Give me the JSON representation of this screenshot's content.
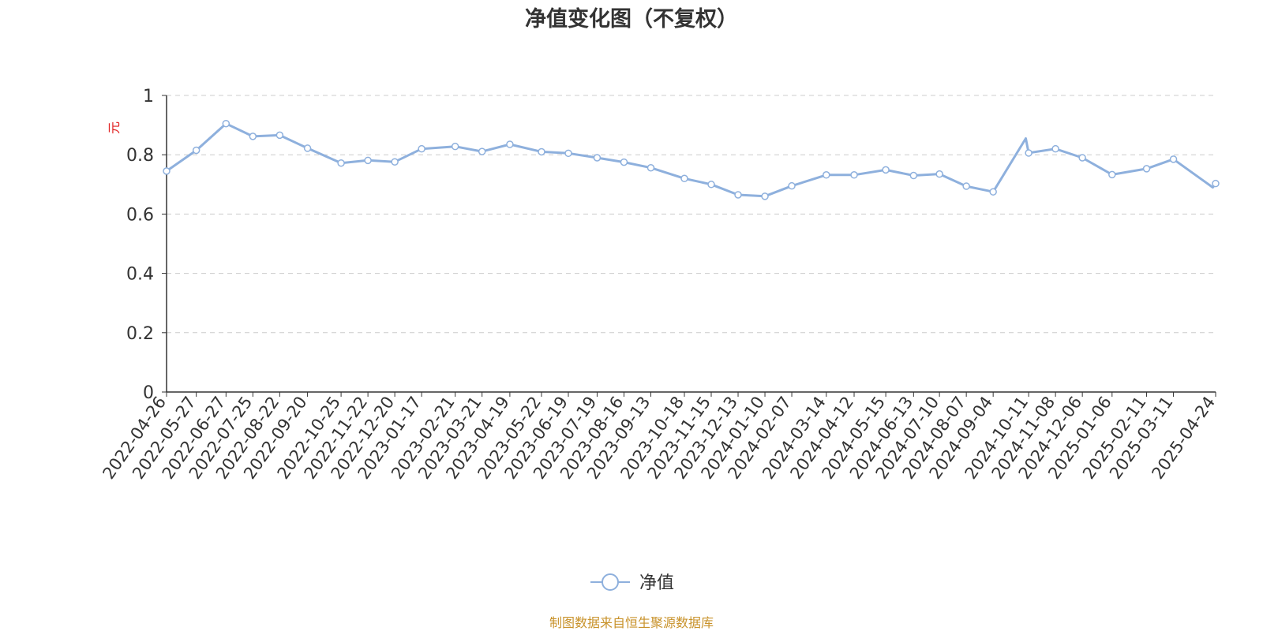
{
  "chart_data": {
    "type": "line",
    "title": "净值变化图（不复权）",
    "ylabel": "元",
    "ylim": [
      0,
      1
    ],
    "y_ticks": [
      "0",
      "0.2",
      "0.4",
      "0.6",
      "0.8",
      "1"
    ],
    "grid": true,
    "legend_position": "bottom-center",
    "colors": {
      "line": "#8eb0dd",
      "grid": "#cccccc",
      "axis": "#333333",
      "ylabel": "#e02020",
      "source": "#c8922a"
    },
    "categories": [
      "2022-04-26",
      "2022-05-27",
      "2022-06-27",
      "2022-07-25",
      "2022-08-22",
      "2022-09-20",
      "2022-10-25",
      "2022-11-22",
      "2022-12-20",
      "2023-01-17",
      "2023-02-21",
      "2023-03-21",
      "2023-04-19",
      "2023-05-22",
      "2023-06-19",
      "2023-07-19",
      "2023-08-16",
      "2023-09-13",
      "2023-10-18",
      "2023-11-15",
      "2023-12-13",
      "2024-01-10",
      "2024-02-07",
      "2024-03-14",
      "2024-04-12",
      "2024-05-15",
      "2024-06-13",
      "2024-07-10",
      "2024-08-07",
      "2024-09-04",
      "2024-10-11",
      "2024-11-08",
      "2024-12-06",
      "2025-01-06",
      "2025-02-11",
      "2025-03-11",
      "2025-04-24"
    ],
    "series": [
      {
        "name": "净值",
        "values": [
          0.745,
          0.815,
          0.905,
          0.862,
          0.866,
          0.822,
          0.772,
          0.781,
          0.776,
          0.82,
          0.828,
          0.811,
          0.835,
          0.81,
          0.805,
          0.79,
          0.775,
          0.756,
          0.72,
          0.7,
          0.665,
          0.66,
          0.695,
          0.732,
          0.732,
          0.749,
          0.73,
          0.735,
          0.694,
          0.675,
          0.806,
          0.82,
          0.79,
          0.733,
          0.753,
          0.785,
          0.703
        ],
        "extra_points": [
          {
            "x": "2024-10-11",
            "y": 0.855,
            "note": "peak before 2024-10-11"
          },
          {
            "x": "2025-04-24",
            "y": 0.69,
            "note": "drop before 2025-04-24"
          }
        ]
      }
    ]
  },
  "legend": {
    "label": "净值"
  },
  "source_note": "制图数据来自恒生聚源数据库"
}
